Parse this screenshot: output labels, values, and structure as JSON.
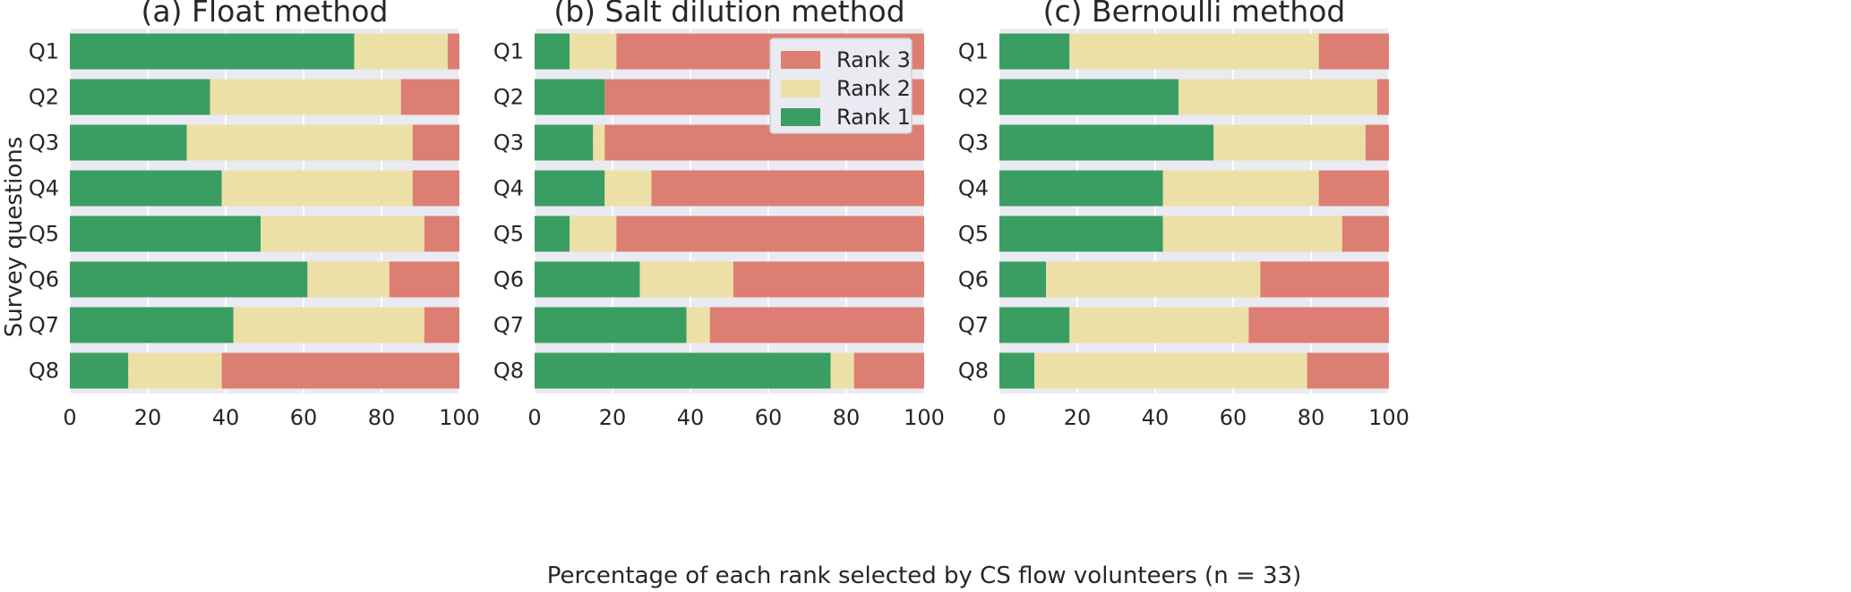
{
  "colors": {
    "rank1": "#3a9e62",
    "rank2": "#ede0a6",
    "rank3": "#dd7e73",
    "panel_background": "#eaeaf2",
    "grid": "#ffffff"
  },
  "figure": {
    "xlabel": "Percentage of each rank selected by CS flow volunteers (n = 33)",
    "ylabel": "Survey questions"
  },
  "legend": {
    "placement": "top-right of panel (b)",
    "entries": [
      "Rank 3",
      "Rank 2",
      "Rank 1"
    ]
  },
  "chart_data": [
    {
      "type": "bar",
      "stacked": true,
      "orientation": "horizontal",
      "title": "(a) Float method",
      "categories": [
        "Q1",
        "Q2",
        "Q3",
        "Q4",
        "Q5",
        "Q6",
        "Q7",
        "Q8"
      ],
      "xlim": [
        0,
        100
      ],
      "xticks": [
        0,
        20,
        40,
        60,
        80,
        100
      ],
      "grid": true,
      "series": [
        {
          "name": "Rank 1",
          "values": [
            73,
            36,
            30,
            39,
            49,
            61,
            42,
            15
          ]
        },
        {
          "name": "Rank 2",
          "values": [
            24,
            49,
            58,
            49,
            42,
            21,
            49,
            24
          ]
        },
        {
          "name": "Rank 3",
          "values": [
            3,
            15,
            12,
            12,
            9,
            18,
            9,
            61
          ]
        }
      ]
    },
    {
      "type": "bar",
      "stacked": true,
      "orientation": "horizontal",
      "title": "(b) Salt  dilution method",
      "categories": [
        "Q1",
        "Q2",
        "Q3",
        "Q4",
        "Q5",
        "Q6",
        "Q7",
        "Q8"
      ],
      "xlim": [
        0,
        100
      ],
      "xticks": [
        0,
        20,
        40,
        60,
        80,
        100
      ],
      "grid": true,
      "series": [
        {
          "name": "Rank 1",
          "values": [
            9,
            18,
            15,
            18,
            9,
            27,
            39,
            76
          ]
        },
        {
          "name": "Rank 2",
          "values": [
            12,
            0,
            3,
            12,
            12,
            24,
            6,
            6
          ]
        },
        {
          "name": "Rank 3",
          "values": [
            79,
            82,
            82,
            70,
            79,
            49,
            55,
            18
          ]
        }
      ]
    },
    {
      "type": "bar",
      "stacked": true,
      "orientation": "horizontal",
      "title": "(c) Bernoulli method",
      "categories": [
        "Q1",
        "Q2",
        "Q3",
        "Q4",
        "Q5",
        "Q6",
        "Q7",
        "Q8"
      ],
      "xlim": [
        0,
        100
      ],
      "xticks": [
        0,
        20,
        40,
        60,
        80,
        100
      ],
      "grid": true,
      "series": [
        {
          "name": "Rank 1",
          "values": [
            18,
            46,
            55,
            42,
            42,
            12,
            18,
            9
          ]
        },
        {
          "name": "Rank 2",
          "values": [
            64,
            51,
            39,
            40,
            46,
            55,
            46,
            70
          ]
        },
        {
          "name": "Rank 3",
          "values": [
            18,
            3,
            6,
            18,
            12,
            33,
            36,
            21
          ]
        }
      ]
    }
  ]
}
